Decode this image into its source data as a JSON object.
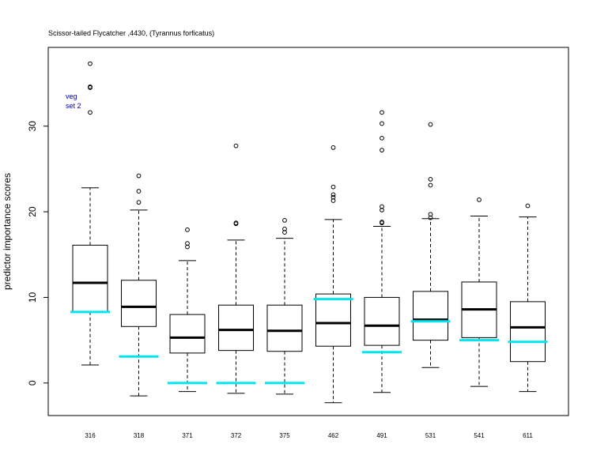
{
  "chart_data": {
    "type": "box",
    "title": "Scissor-tailed Flycatcher ,4430, (Tyrannus forficatus)",
    "xlabel": "",
    "ylabel": "predictor importance scores",
    "ylim": [
      -3.8,
      39.2
    ],
    "yticks": [
      0,
      10,
      20,
      30
    ],
    "annotation": [
      "veg",
      "set 2"
    ],
    "colors": {
      "box": "#000000",
      "reference_line": "#00e5ee"
    },
    "categories": [
      "316",
      "318",
      "371",
      "372",
      "375",
      "462",
      "491",
      "531",
      "541",
      "611"
    ],
    "series": [
      {
        "stats": [
          {
            "min": 2.1,
            "q1": 8.3,
            "median": 11.7,
            "q3": 16.1,
            "max": 22.8,
            "outliers": [
              31.6,
              34.5,
              34.6,
              37.3
            ]
          },
          {
            "min": -1.5,
            "q1": 6.6,
            "median": 8.9,
            "q3": 12.0,
            "max": 20.2,
            "outliers": [
              21.1,
              22.4,
              24.2
            ]
          },
          {
            "min": -1.0,
            "q1": 3.5,
            "median": 5.3,
            "q3": 8.0,
            "max": 14.3,
            "outliers": [
              15.9,
              16.3,
              17.9
            ]
          },
          {
            "min": -1.2,
            "q1": 3.8,
            "median": 6.2,
            "q3": 9.1,
            "max": 16.7,
            "outliers": [
              18.6,
              18.7,
              27.7
            ]
          },
          {
            "min": -1.3,
            "q1": 3.7,
            "median": 6.1,
            "q3": 9.1,
            "max": 16.9,
            "outliers": [
              17.6,
              18.0,
              19.0
            ]
          },
          {
            "min": -2.3,
            "q1": 4.3,
            "median": 7.0,
            "q3": 10.4,
            "max": 19.1,
            "outliers": [
              21.3,
              21.7,
              22.0,
              22.9,
              27.5
            ]
          },
          {
            "min": -1.1,
            "q1": 4.4,
            "median": 6.7,
            "q3": 10.0,
            "max": 18.3,
            "outliers": [
              18.7,
              18.8,
              20.2,
              20.6,
              27.2,
              28.6,
              30.3,
              31.6
            ]
          },
          {
            "min": 1.8,
            "q1": 5.0,
            "median": 7.4,
            "q3": 10.7,
            "max": 19.2,
            "outliers": [
              19.3,
              19.7,
              23.1,
              23.8,
              30.2
            ]
          },
          {
            "min": -0.4,
            "q1": 5.3,
            "median": 8.6,
            "q3": 11.8,
            "max": 19.5,
            "outliers": [
              21.4
            ]
          },
          {
            "min": -1.0,
            "q1": 2.5,
            "median": 6.5,
            "q3": 9.5,
            "max": 19.4,
            "outliers": [
              20.7
            ]
          }
        ]
      },
      {
        "reference_values": [
          8.3,
          3.1,
          0.0,
          0.0,
          0.0,
          9.8,
          3.6,
          7.2,
          5.0,
          4.8
        ]
      }
    ],
    "grid": false,
    "legend": "none"
  }
}
